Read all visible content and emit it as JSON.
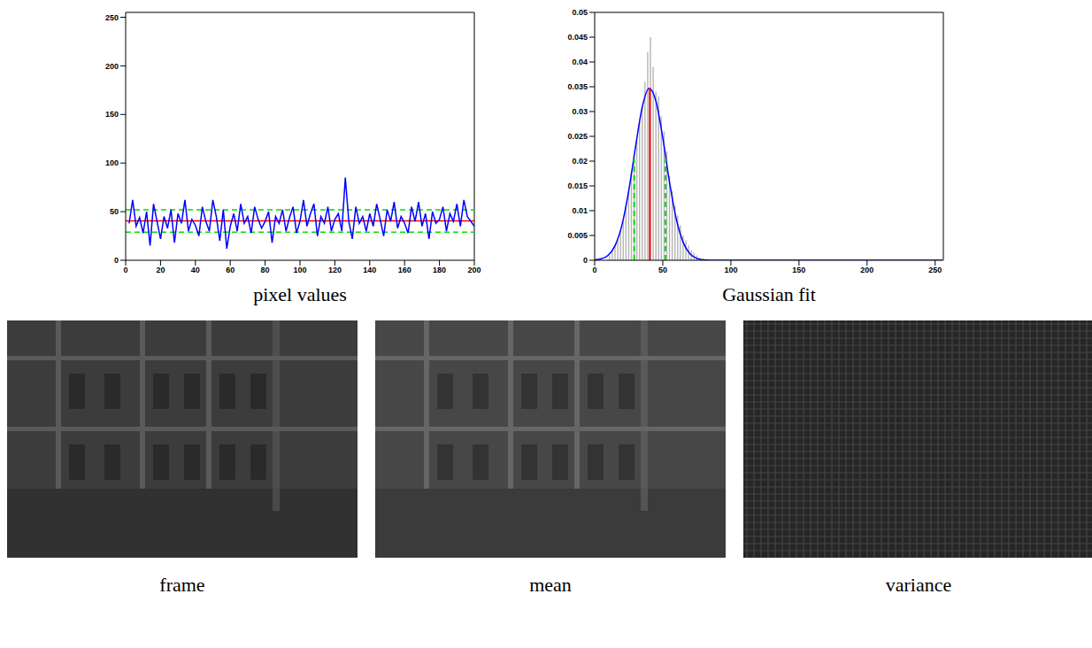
{
  "chart_data": [
    {
      "type": "line",
      "title": "pixel values",
      "x": [
        2,
        4,
        6,
        8,
        10,
        12,
        14,
        16,
        18,
        20,
        22,
        24,
        26,
        28,
        30,
        32,
        34,
        36,
        38,
        40,
        42,
        44,
        46,
        48,
        50,
        52,
        54,
        56,
        58,
        60,
        62,
        64,
        66,
        68,
        70,
        72,
        74,
        76,
        78,
        80,
        82,
        84,
        86,
        88,
        90,
        92,
        94,
        96,
        98,
        100,
        102,
        104,
        106,
        108,
        110,
        112,
        114,
        116,
        118,
        120,
        122,
        124,
        126,
        128,
        130,
        132,
        134,
        136,
        138,
        140,
        142,
        144,
        146,
        148,
        150,
        152,
        154,
        156,
        158,
        160,
        162,
        164,
        166,
        168,
        170,
        172,
        174,
        176,
        178,
        180,
        182,
        184,
        186,
        188,
        190,
        192,
        194,
        196,
        198,
        200
      ],
      "series": [
        {
          "color": "#0000ff",
          "values": [
            38,
            62,
            35,
            44,
            28,
            50,
            15,
            58,
            40,
            22,
            45,
            33,
            52,
            18,
            48,
            38,
            62,
            30,
            42,
            36,
            25,
            55,
            40,
            30,
            62,
            45,
            20,
            52,
            12,
            35,
            48,
            30,
            58,
            38,
            45,
            28,
            55,
            42,
            33,
            40,
            50,
            18,
            45,
            38,
            52,
            30,
            44,
            55,
            28,
            40,
            62,
            35,
            48,
            58,
            25,
            45,
            38,
            55,
            30,
            42,
            48,
            30,
            85,
            40,
            22,
            55,
            38,
            45,
            30,
            48,
            35,
            58,
            42,
            25,
            52,
            40,
            60,
            33,
            45,
            38,
            28,
            55,
            40,
            60,
            35,
            48,
            22,
            50,
            38,
            42,
            55,
            30,
            48,
            40,
            58,
            35,
            62,
            45,
            40,
            35
          ]
        }
      ],
      "hlines": [
        {
          "y": 40.5,
          "color": "#ff0000"
        },
        {
          "y": 29,
          "color": "#00dd00",
          "line_style": "dashed"
        },
        {
          "y": 52,
          "color": "#00dd00",
          "line_style": "dashed"
        }
      ],
      "xlim": [
        0,
        200
      ],
      "xticks": [
        0,
        20,
        40,
        60,
        80,
        100,
        120,
        140,
        160,
        180,
        200
      ],
      "ylim": [
        0,
        255
      ],
      "yticks": [
        0,
        50,
        100,
        150,
        200,
        250
      ]
    },
    {
      "type": "histogram",
      "title": "Gaussian fit",
      "bins": [
        10,
        12,
        14,
        16,
        18,
        20,
        22,
        24,
        26,
        28,
        30,
        32,
        34,
        36,
        38,
        40,
        42,
        44,
        46,
        48,
        50,
        52,
        54,
        56,
        58,
        60,
        62,
        64,
        66,
        68,
        70,
        72,
        74,
        76,
        78
      ],
      "values": [
        0.001,
        0.002,
        0.003,
        0.004,
        0.006,
        0.008,
        0.011,
        0.014,
        0.018,
        0.021,
        0.024,
        0.028,
        0.031,
        0.036,
        0.042,
        0.045,
        0.039,
        0.034,
        0.033,
        0.029,
        0.026,
        0.022,
        0.017,
        0.014,
        0.011,
        0.009,
        0.007,
        0.005,
        0.004,
        0.003,
        0.002,
        0.0015,
        0.001,
        0.0005
      ],
      "color": "#b4b4b4",
      "fit": {
        "color": "#0000ff",
        "x": [
          0,
          5,
          10,
          15,
          20,
          25,
          30,
          35,
          40,
          45,
          50,
          55,
          60,
          65,
          70,
          75,
          80,
          90,
          100,
          255
        ],
        "values": [
          7e-05,
          0.0003,
          0.00103,
          0.00297,
          0.00708,
          0.014,
          0.0229,
          0.031,
          0.0347,
          0.0321,
          0.0247,
          0.0157,
          0.00824,
          0.00359,
          0.00129,
          0.00039,
          0.0001,
          0,
          0,
          0
        ]
      },
      "vlines": [
        {
          "x": 40.5,
          "y": 0.0347,
          "color": "#ff0000"
        },
        {
          "x": 29,
          "y": 0.0205,
          "color": "#00dd00",
          "line_style": "dashed"
        },
        {
          "x": 52,
          "y": 0.0205,
          "color": "#00dd00",
          "line_style": "dashed"
        }
      ],
      "xlim": [
        0,
        256
      ],
      "xticks": [
        0,
        50,
        100,
        150,
        200,
        250
      ],
      "ylim": [
        0,
        0.05
      ],
      "yticks": [
        0,
        0.005,
        0.01,
        0.015,
        0.02,
        0.025,
        0.03,
        0.035,
        0.04,
        0.045,
        0.05
      ]
    }
  ],
  "images": [
    {
      "caption": "frame"
    },
    {
      "caption": "mean"
    },
    {
      "caption": "variance"
    }
  ]
}
